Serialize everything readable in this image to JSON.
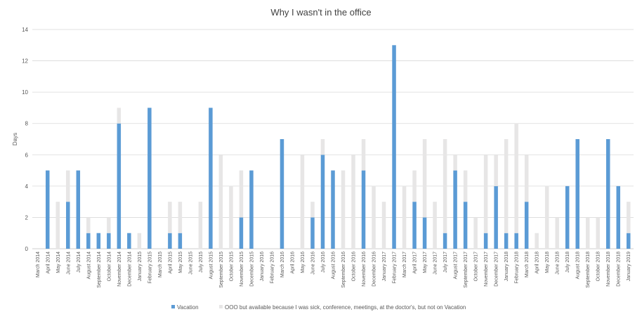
{
  "chart_data": {
    "type": "bar",
    "title": "Why I wasn't in the office",
    "xlabel": "",
    "ylabel": "Days",
    "ylim": [
      0,
      14
    ],
    "yticks": [
      0,
      2,
      4,
      6,
      8,
      10,
      12,
      14
    ],
    "grid": true,
    "legend_position": "bottom",
    "categories": [
      "March 2014",
      "April 2014",
      "May 2014",
      "June 2014",
      "July 2014",
      "August 2014",
      "September 2014",
      "October 2014",
      "November 2014",
      "December 2014",
      "January 2015",
      "February 2015",
      "March 2015",
      "April 2015",
      "May 2015",
      "June 2015",
      "July 2015",
      "August 2015",
      "September 2015",
      "October 2015",
      "November 2015",
      "December 2015",
      "January 2016",
      "February 2016",
      "March 2016",
      "April 2016",
      "May 2016",
      "June 2016",
      "July 2016",
      "August 2016",
      "September 2016",
      "October 2016",
      "November 2016",
      "December 2016",
      "January 2017",
      "February 2017",
      "March 2017",
      "April 2017",
      "May 2017",
      "June 2017",
      "July 2017",
      "August 2017",
      "September 2017",
      "October 2017",
      "November 2017",
      "December 2017",
      "January 2018",
      "February 2018",
      "March 2018",
      "April 2018",
      "May 2018",
      "June 2018",
      "July 2018",
      "August 2018",
      "September 2018",
      "October 2018",
      "November 2018",
      "December 2018",
      "January 2019"
    ],
    "series": [
      {
        "name": "Vacation",
        "color": "#5b9bd5",
        "values": [
          0,
          5,
          0,
          3,
          5,
          1,
          1,
          1,
          8,
          1,
          0,
          9,
          0,
          1,
          1,
          0,
          0,
          9,
          0,
          0,
          2,
          5,
          0,
          0,
          7,
          0,
          0,
          2,
          6,
          5,
          0,
          0,
          5,
          0,
          0,
          13,
          0,
          3,
          2,
          0,
          1,
          5,
          3,
          0,
          1,
          4,
          1,
          1,
          3,
          0,
          0,
          0,
          4,
          7,
          0,
          0,
          7,
          4,
          1
        ]
      },
      {
        "name": "OOO but available because I was sick, conference, meetings, at the doctor's, but not on Vacation",
        "color": "#e7e6e6",
        "values": [
          0,
          0,
          3,
          2,
          0,
          1,
          0,
          1,
          1,
          0,
          1,
          0,
          0,
          2,
          2,
          0,
          3,
          0,
          6,
          4,
          3,
          0,
          0,
          0,
          0,
          0,
          6,
          1,
          1,
          0,
          5,
          6,
          2,
          4,
          3,
          0,
          4,
          2,
          5,
          3,
          6,
          1,
          2,
          2,
          5,
          2,
          6,
          7,
          3,
          1,
          4,
          2,
          0,
          0,
          2,
          2,
          0,
          0,
          2
        ]
      }
    ]
  }
}
